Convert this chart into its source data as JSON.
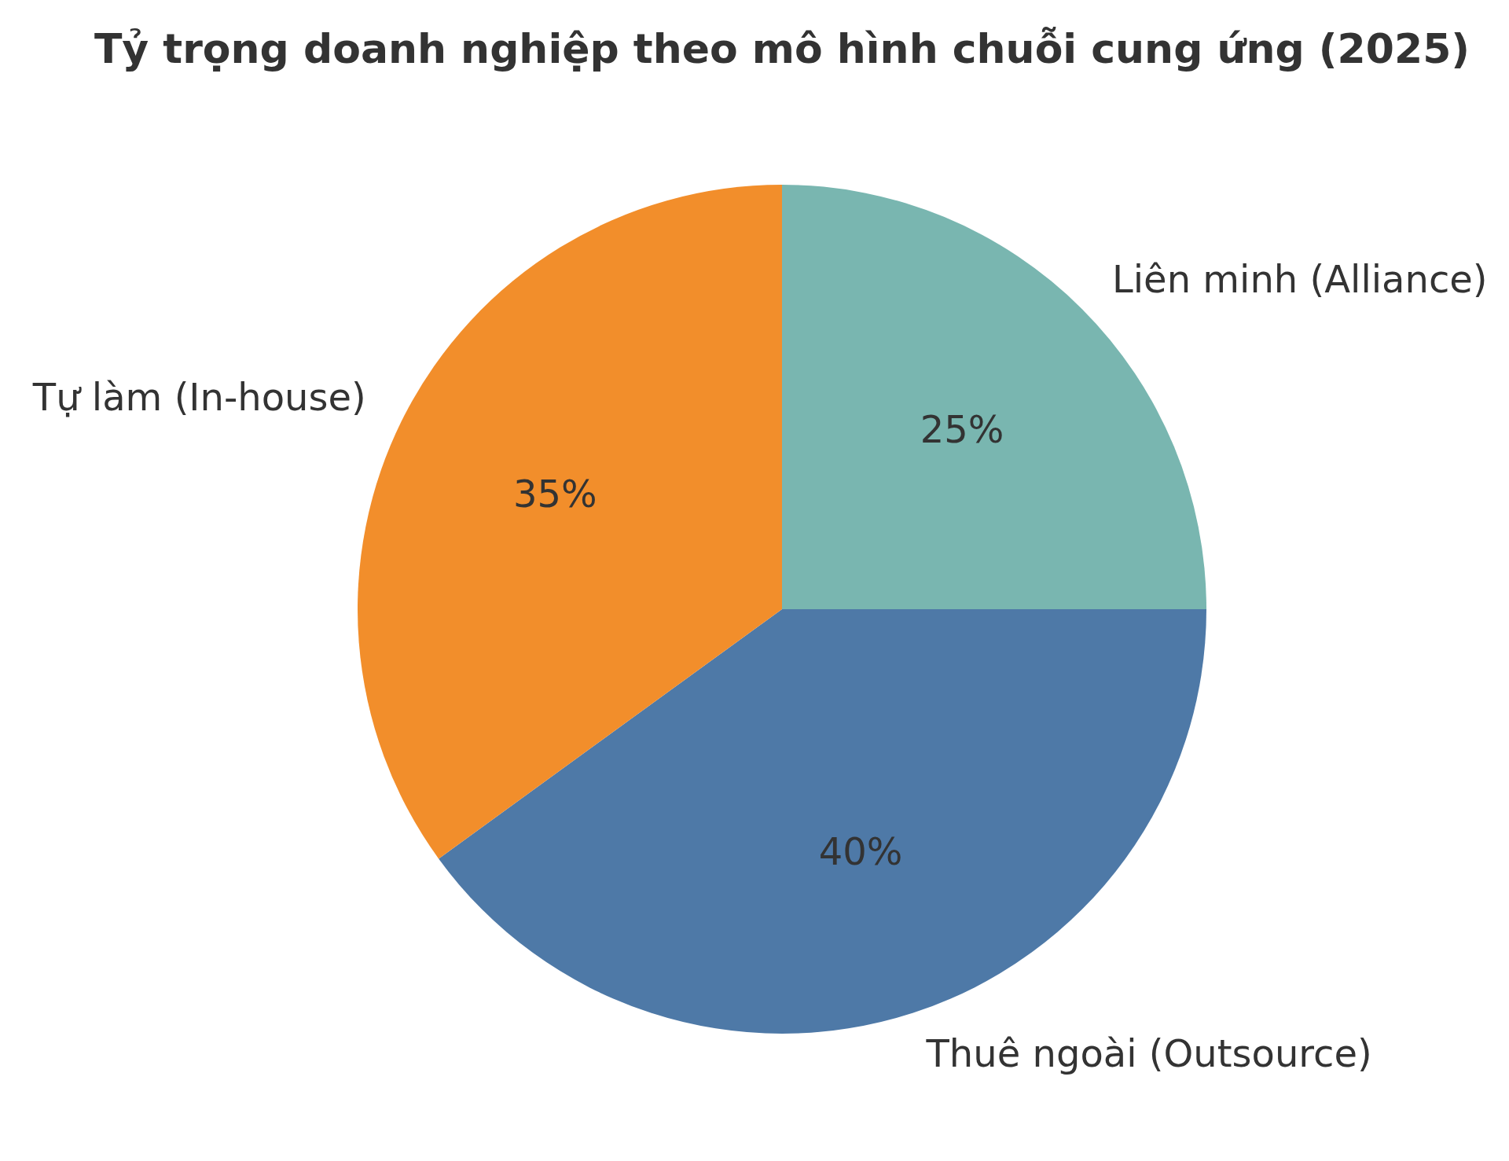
{
  "chart_data": {
    "type": "pie",
    "title": "Tỷ trọng doanh nghiệp theo mô hình chuỗi cung ứng (2025)",
    "categories": [
      "Liên minh (Alliance)",
      "Thuê ngoài (Outsource)",
      "Tự làm (In-house)"
    ],
    "values": [
      25,
      40,
      35
    ],
    "colors": [
      "#79b6b0",
      "#4e79a7",
      "#f28e2b"
    ],
    "value_labels": [
      "25%",
      "40%",
      "35%"
    ],
    "legend": false
  }
}
